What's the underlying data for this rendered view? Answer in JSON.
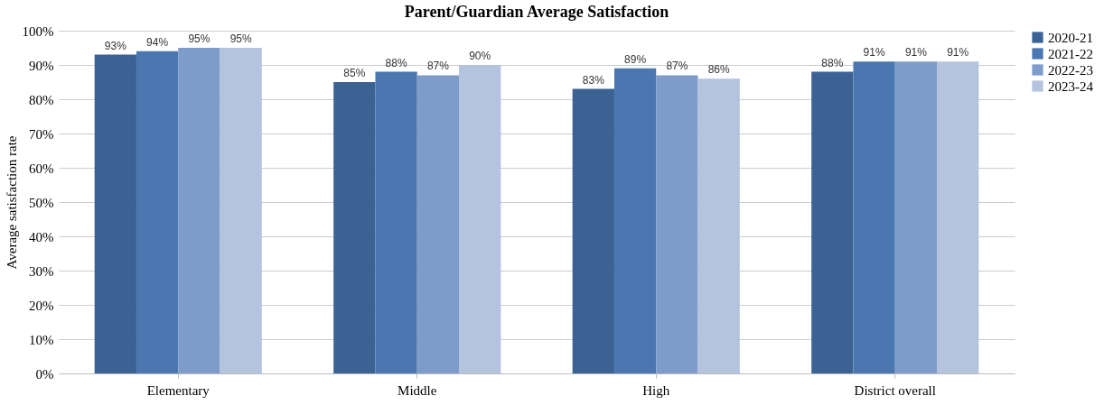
{
  "chart_data": {
    "type": "bar",
    "title": "Parent/Guardian Average Satisfaction",
    "ylabel": "Average satisfaction rate",
    "categories": [
      "Elementary",
      "Middle",
      "High",
      "District overall"
    ],
    "series": [
      {
        "name": "2020-21",
        "color": "#3c6294",
        "values": [
          93,
          85,
          83,
          88
        ],
        "value_labels": [
          "93%",
          "85%",
          "83%",
          "88%"
        ]
      },
      {
        "name": "2021-22",
        "color": "#4a77b0",
        "values": [
          94,
          88,
          89,
          91
        ],
        "value_labels": [
          "94%",
          "88%",
          "89%",
          "91%"
        ]
      },
      {
        "name": "2022-23",
        "color": "#7e9cc9",
        "values": [
          95,
          87,
          87,
          91
        ],
        "value_labels": [
          "95%",
          "87%",
          "87%",
          "91%"
        ]
      },
      {
        "name": "2023-24",
        "color": "#b4c3de",
        "values": [
          95,
          90,
          86,
          91
        ],
        "value_labels": [
          "95%",
          "90%",
          "86%",
          "91%"
        ]
      }
    ],
    "ylim": [
      0,
      100
    ],
    "yticks": [
      {
        "value": 0,
        "label": "0%"
      },
      {
        "value": 10,
        "label": "10%"
      },
      {
        "value": 20,
        "label": "20%"
      },
      {
        "value": 30,
        "label": "30%"
      },
      {
        "value": 40,
        "label": "40%"
      },
      {
        "value": 50,
        "label": "50%"
      },
      {
        "value": 60,
        "label": "60%"
      },
      {
        "value": 70,
        "label": "70%"
      },
      {
        "value": 80,
        "label": "80%"
      },
      {
        "value": 90,
        "label": "90%"
      },
      {
        "value": 100,
        "label": "100%"
      }
    ],
    "grid": "y",
    "legend": "right"
  }
}
